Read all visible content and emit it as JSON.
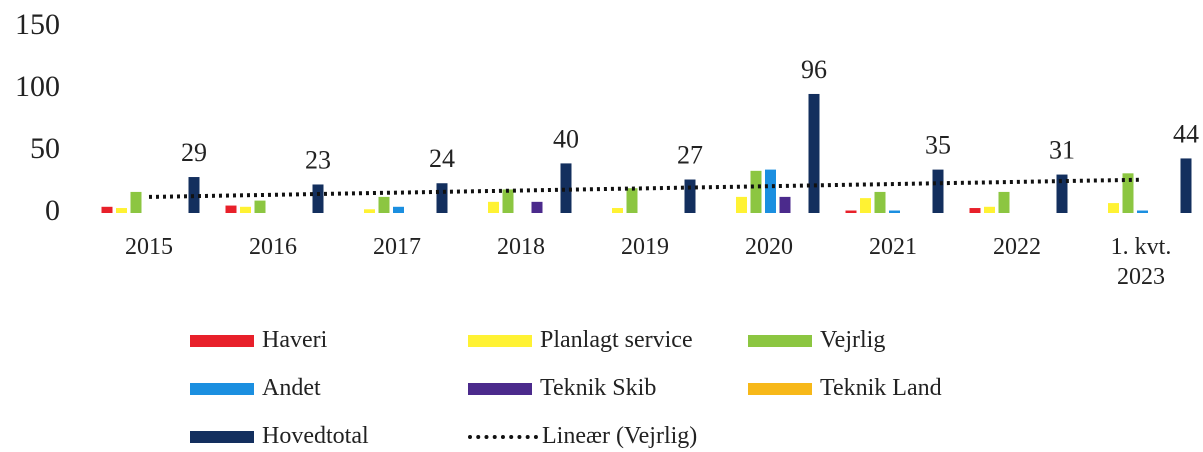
{
  "chart_data": {
    "type": "bar",
    "categories": [
      "2015",
      "2016",
      "2017",
      "2018",
      "2019",
      "2020",
      "2021",
      "2022",
      "1. kvt.\n2023"
    ],
    "series": [
      {
        "name": "Haveri",
        "color": "#e8202a",
        "values": [
          5,
          6,
          0,
          0,
          0,
          0,
          2,
          4,
          0
        ]
      },
      {
        "name": "Planlagt service",
        "color": "#fff233",
        "values": [
          4,
          5,
          3,
          9,
          4,
          13,
          12,
          5,
          8
        ]
      },
      {
        "name": "Vejrlig",
        "color": "#8cc641",
        "values": [
          17,
          10,
          13,
          19,
          20,
          34,
          17,
          17,
          32
        ]
      },
      {
        "name": "Andet",
        "color": "#1b8fe0",
        "values": [
          0,
          0,
          5,
          0,
          0,
          35,
          2,
          0,
          2
        ]
      },
      {
        "name": "Teknik Skib",
        "color": "#4b2a8c",
        "values": [
          0,
          0,
          0,
          9,
          0,
          13,
          0,
          0,
          0
        ]
      },
      {
        "name": "Teknik Land",
        "color": "#f7b819",
        "values": [
          0,
          0,
          0,
          0,
          0,
          0,
          0,
          0,
          0
        ]
      },
      {
        "name": "Hovedtotal",
        "color": "#132f5e",
        "values": [
          29,
          23,
          24,
          40,
          27,
          96,
          35,
          31,
          44
        ]
      }
    ],
    "trendline": {
      "name": "Lineær (Vejrlig)",
      "series": 2,
      "color": "#111111"
    },
    "ylim": [
      0,
      150
    ],
    "yticks": [
      0,
      50,
      100,
      150
    ],
    "grid": false,
    "value_label_series": 6
  }
}
